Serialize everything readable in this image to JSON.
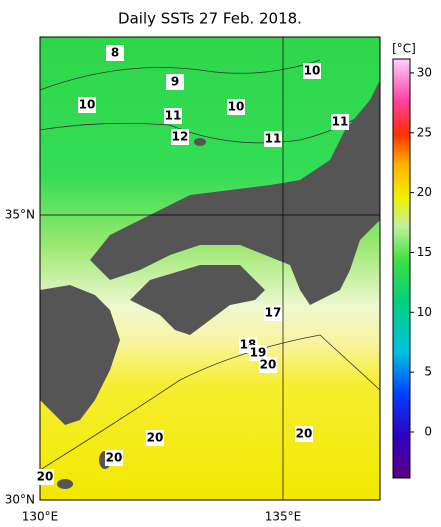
{
  "title": "Daily SSTs 27 Feb. 2018.",
  "map": {
    "lat_labels": [
      "35°N",
      "30°N"
    ],
    "lon_labels": [
      "130°E",
      "135°E"
    ],
    "contour_labels": [
      8,
      9,
      10,
      10,
      10,
      11,
      11,
      11,
      12,
      17,
      18,
      19,
      20,
      20,
      20,
      20,
      20
    ]
  },
  "colorbar": {
    "unit": "[°C]",
    "ticks": [
      30,
      25,
      20,
      15,
      10,
      5,
      0
    ]
  }
}
